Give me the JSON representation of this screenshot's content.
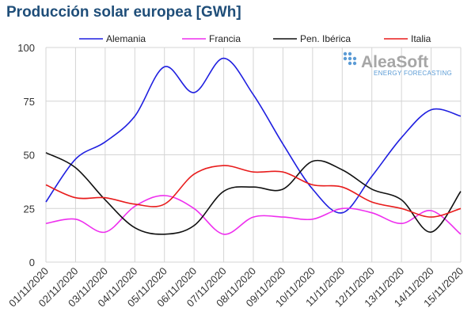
{
  "chart_data": {
    "type": "line",
    "title": "Producción solar europea [GWh]",
    "xlabel": "",
    "ylabel": "",
    "ylim": [
      0,
      100
    ],
    "yticks": [
      0,
      25,
      50,
      75,
      100
    ],
    "grid": true,
    "legend_position": "top",
    "categories": [
      "01/11/2020",
      "02/11/2020",
      "03/11/2020",
      "04/11/2020",
      "05/11/2020",
      "06/11/2020",
      "07/11/2020",
      "08/11/2020",
      "09/11/2020",
      "10/11/2020",
      "11/11/2020",
      "12/11/2020",
      "13/11/2020",
      "14/11/2020",
      "15/11/2020"
    ],
    "series": [
      {
        "name": "Alemania",
        "color": "#1f1fe0",
        "values": [
          28,
          48,
          56,
          68,
          91,
          79,
          95,
          78,
          55,
          34,
          23,
          40,
          58,
          71,
          68
        ]
      },
      {
        "name": "Francia",
        "color": "#ee2fee",
        "values": [
          18,
          20,
          14,
          26,
          31,
          25,
          13,
          21,
          21,
          20,
          25,
          23,
          18,
          24,
          13
        ]
      },
      {
        "name": "Pen. Ibérica",
        "color": "#111111",
        "values": [
          51,
          44,
          29,
          16,
          13,
          17,
          33,
          35,
          34,
          47,
          43,
          34,
          29,
          14,
          33
        ]
      },
      {
        "name": "Italia",
        "color": "#e81c1c",
        "values": [
          36,
          30,
          30,
          27,
          27,
          41,
          45,
          42,
          42,
          36,
          35,
          28,
          25,
          21,
          25
        ]
      }
    ]
  },
  "logo": {
    "name": "AleaSoft",
    "tagline": "ENERGY FORECASTING"
  }
}
